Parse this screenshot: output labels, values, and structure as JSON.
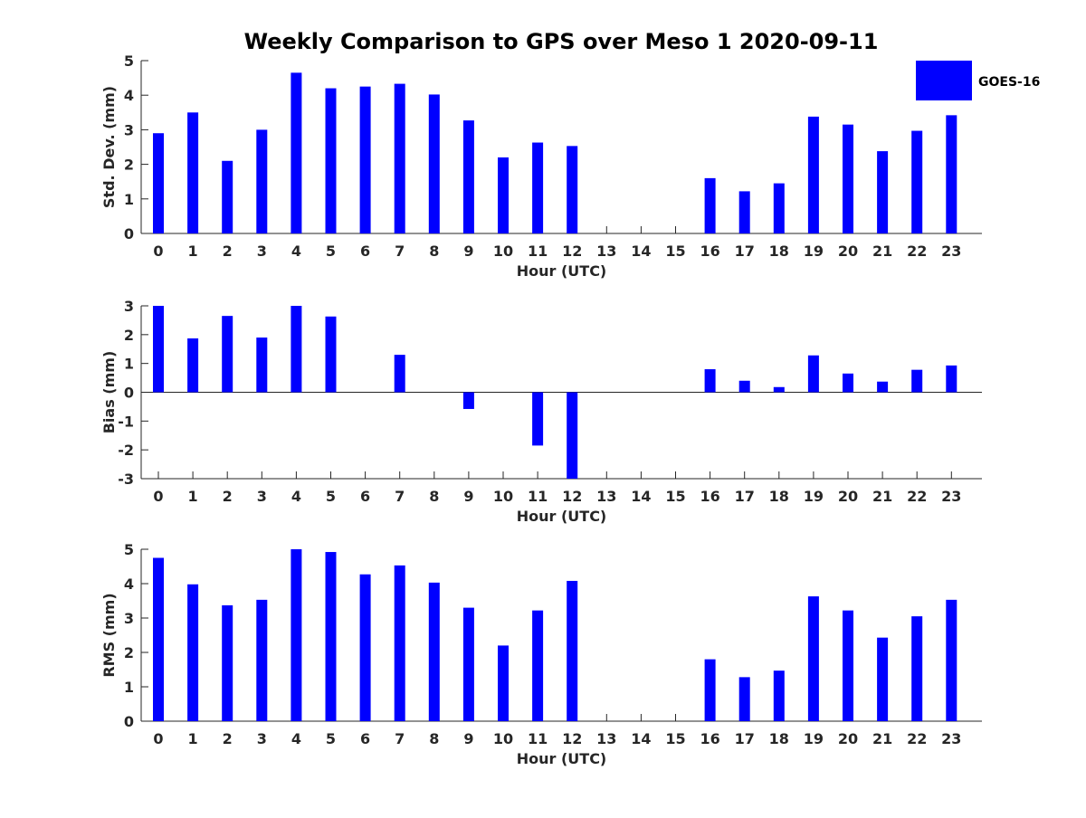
{
  "chart_data": {
    "title": "Weekly Comparison to GPS over Meso 1 2020-09-11",
    "legend": {
      "label": "GOES-16",
      "color": "#0000ff",
      "placement": "top-right"
    },
    "bar_color": "#0000ff",
    "categories": [
      "0",
      "1",
      "2",
      "3",
      "4",
      "5",
      "6",
      "7",
      "8",
      "9",
      "10",
      "11",
      "12",
      "13",
      "14",
      "15",
      "16",
      "17",
      "18",
      "19",
      "20",
      "21",
      "22",
      "23"
    ],
    "panels": [
      {
        "id": "std",
        "type": "bar",
        "ylabel": "Std. Dev. (mm)",
        "xlabel": "Hour (UTC)",
        "ylim": [
          0,
          5
        ],
        "yticks": [
          0,
          1,
          2,
          3,
          4,
          5
        ],
        "values": [
          2.9,
          3.5,
          2.1,
          3.0,
          4.65,
          4.2,
          4.25,
          4.33,
          4.02,
          3.27,
          2.2,
          2.63,
          2.53,
          null,
          null,
          null,
          1.6,
          1.22,
          1.45,
          3.38,
          3.15,
          2.38,
          2.97,
          3.42
        ],
        "zero_line": false
      },
      {
        "id": "bias",
        "type": "bar",
        "ylabel": "Bias (mm)",
        "xlabel": "Hour (UTC)",
        "ylim": [
          -3,
          3
        ],
        "yticks": [
          -3,
          -2,
          -1,
          0,
          1,
          2,
          3
        ],
        "values": [
          3.0,
          1.87,
          2.65,
          1.9,
          3.0,
          2.63,
          0.0,
          1.3,
          0.0,
          -0.58,
          0.0,
          -1.85,
          -3.0,
          null,
          null,
          null,
          0.8,
          0.4,
          0.18,
          1.28,
          0.65,
          0.37,
          0.78,
          0.93
        ],
        "zero_line": true
      },
      {
        "id": "rms",
        "type": "bar",
        "ylabel": "RMS (mm)",
        "xlabel": "Hour (UTC)",
        "ylim": [
          0,
          5
        ],
        "yticks": [
          0,
          1,
          2,
          3,
          4,
          5
        ],
        "values": [
          4.75,
          3.98,
          3.37,
          3.53,
          5.0,
          4.92,
          4.27,
          4.53,
          4.03,
          3.3,
          2.2,
          3.22,
          4.08,
          null,
          null,
          null,
          1.8,
          1.28,
          1.47,
          3.63,
          3.22,
          2.43,
          3.05,
          3.53
        ],
        "zero_line": false
      }
    ]
  }
}
